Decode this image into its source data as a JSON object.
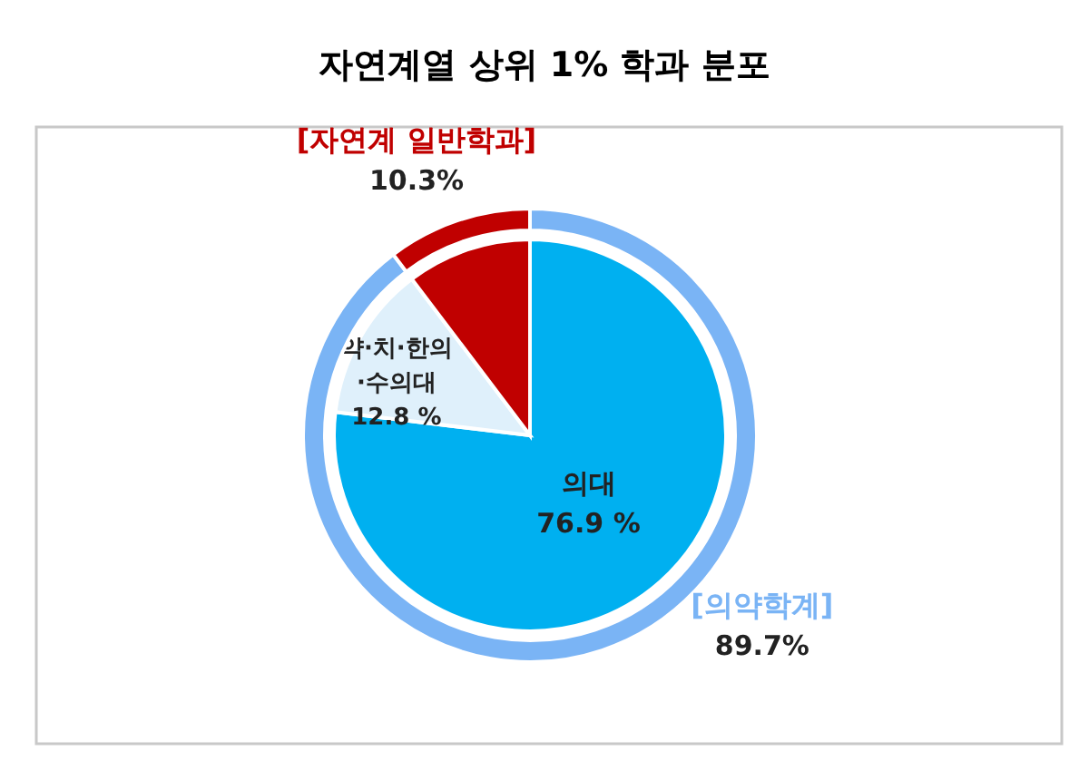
{
  "chart_data": [
    {
      "type": "pie",
      "title": "자연계열 상위 1% 학과 분포",
      "categories": [
        "의대",
        "약·치·한의·수의대",
        null
      ],
      "values": [
        76.9,
        12.8,
        10.3
      ],
      "colors": [
        "#00b0f0",
        "#dff0fb",
        "#c00000"
      ],
      "value_labels": [
        "76.9 %",
        "12.8 %",
        null
      ]
    },
    {
      "type": "donut",
      "categories": [
        "[의약학계]",
        "[자연계 일반학과]"
      ],
      "values": [
        89.7,
        10.3
      ],
      "colors": [
        "#7ab4f5",
        "#c00000"
      ],
      "value_labels": [
        "89.7%",
        "10.3%"
      ]
    }
  ]
}
